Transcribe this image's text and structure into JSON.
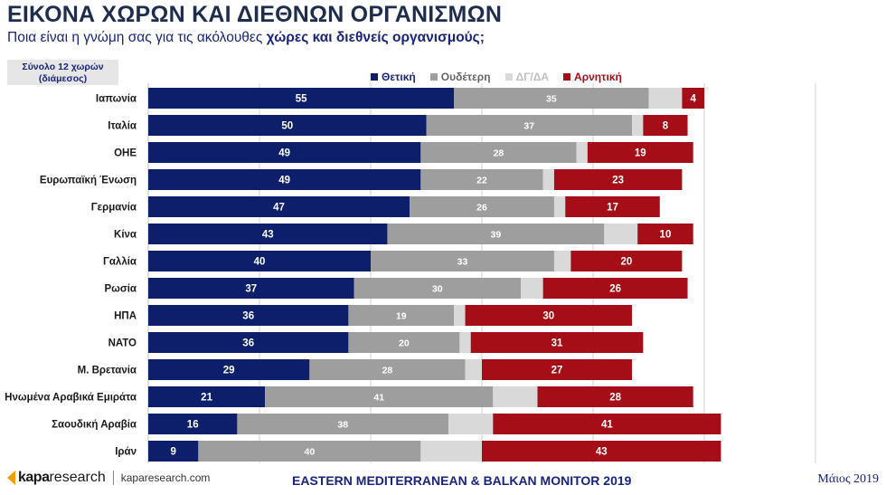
{
  "title": "ΕΙΚΟΝΑ ΧΩΡΩΝ ΚΑΙ ΔΙΕΘΝΩΝ ΟΡΓΑΝΙΣΜΩΝ",
  "subtitle_plain": "Ποια είναι η γνώμη σας για τις ακόλουθες ",
  "subtitle_bold": "χώρες και διεθνείς οργανισμούς;",
  "base_line1": "Σύνολο 12 χωρών",
  "base_line2": "(διάμεσος)",
  "footer": {
    "brand_bold": "kapa",
    "brand_light": "research",
    "url": "kaparesearch.com",
    "report": "EASTERN MEDITERRANEAN & BALKAN MONITOR 2019",
    "date": "Μάιος 2019"
  },
  "colors": {
    "positive": "#0d1f6b",
    "neutral": "#9e9e9e",
    "dkna": "#d9d9d9",
    "negative": "#a50e16"
  },
  "chart_data": {
    "type": "bar",
    "orientation": "horizontal",
    "stacked": true,
    "categories": [
      "Ιαπωνία",
      "Ιταλία",
      "ΟΗΕ",
      "Ευρωπαϊκή Ένωση",
      "Γερμανία",
      "Κίνα",
      "Γαλλία",
      "Ρωσία",
      "ΗΠΑ",
      "ΝΑΤΟ",
      "Μ. Βρετανία",
      "Ηνωμένα Αραβικά Εμιράτα",
      "Σαουδική Αραβία",
      "Ιράν"
    ],
    "series": [
      {
        "name": "Θετική",
        "color": "#0d1f6b",
        "values": [
          55,
          50,
          49,
          49,
          47,
          43,
          40,
          37,
          36,
          36,
          29,
          21,
          16,
          9
        ]
      },
      {
        "name": "Ουδέτερη",
        "color": "#9e9e9e",
        "values": [
          35,
          37,
          28,
          22,
          26,
          39,
          33,
          30,
          19,
          20,
          28,
          41,
          38,
          40
        ]
      },
      {
        "name": "ΔΓ/ΔΑ",
        "color": "#d9d9d9",
        "values": [
          6,
          2,
          2,
          2,
          2,
          6,
          3,
          4,
          2,
          2,
          3,
          8,
          8,
          11
        ]
      },
      {
        "name": "Αρνητική",
        "color": "#a50e16",
        "values": [
          4,
          8,
          19,
          23,
          17,
          10,
          20,
          26,
          30,
          31,
          27,
          28,
          41,
          43
        ]
      }
    ],
    "xlim": [
      0,
      120
    ],
    "legend": "top",
    "grid": true
  }
}
